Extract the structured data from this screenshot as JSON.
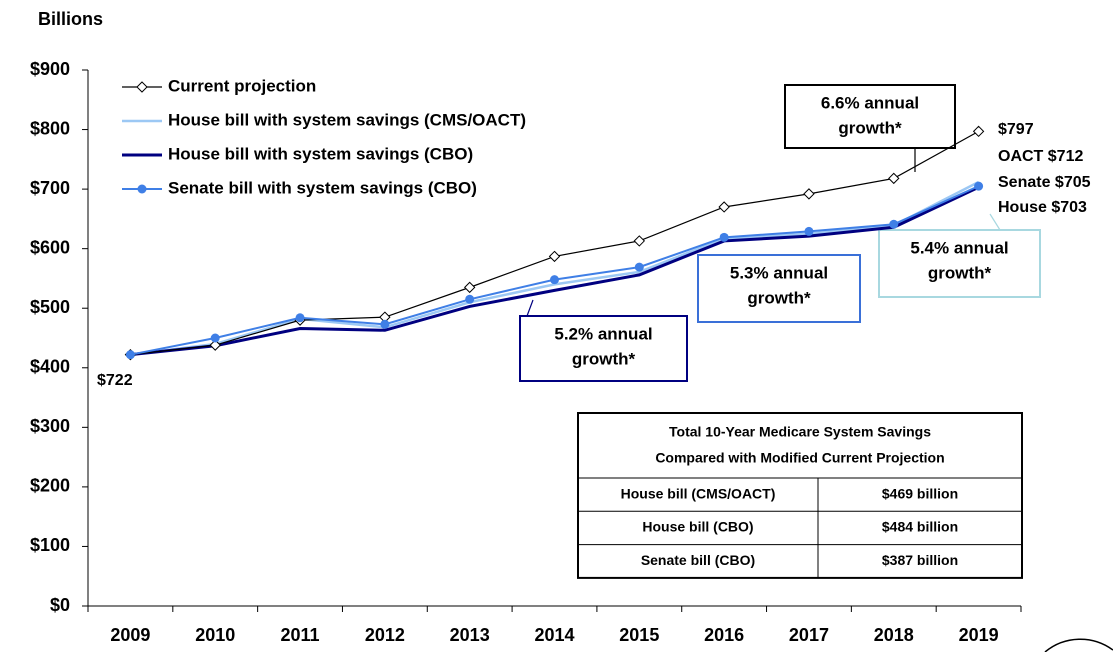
{
  "chart_data": {
    "type": "line",
    "y_label": "Billions",
    "categories": [
      "2009",
      "2010",
      "2011",
      "2012",
      "2013",
      "2014",
      "2015",
      "2016",
      "2017",
      "2018",
      "2019"
    ],
    "ylim": [
      0,
      900
    ],
    "yticks": [
      {
        "value": 0,
        "label": "$0"
      },
      {
        "value": 100,
        "label": "$100"
      },
      {
        "value": 200,
        "label": "$200"
      },
      {
        "value": 300,
        "label": "$300"
      },
      {
        "value": 400,
        "label": "$400"
      },
      {
        "value": 500,
        "label": "$500"
      },
      {
        "value": 600,
        "label": "$600"
      },
      {
        "value": 700,
        "label": "$700"
      },
      {
        "value": 800,
        "label": "$800"
      },
      {
        "value": 900,
        "label": "$900"
      }
    ],
    "legend": "upper left",
    "series": [
      {
        "name": "Current projection",
        "color": "#000000",
        "marker": "diamond",
        "width": 1.2,
        "values": [
          422,
          438,
          480,
          485,
          535,
          587,
          613,
          670,
          692,
          718,
          797
        ]
      },
      {
        "name": "House bill with system savings (CMS/OACT)",
        "color": "#9cc8f4",
        "marker": "none",
        "width": 2.5,
        "values": [
          422,
          440,
          482,
          468,
          510,
          540,
          561,
          617,
          625,
          639,
          712
        ]
      },
      {
        "name": "House bill with system savings (CBO)",
        "color": "#000080",
        "marker": "none",
        "width": 3,
        "values": [
          422,
          437,
          466,
          463,
          503,
          530,
          556,
          613,
          621,
          636,
          703
        ]
      },
      {
        "name": "Senate bill with system savings (CBO)",
        "color": "#3f7fe6",
        "marker": "circle",
        "width": 2,
        "values": [
          422,
          450,
          484,
          473,
          515,
          548,
          569,
          619,
          629,
          641,
          705
        ]
      }
    ],
    "annotations": [
      "$722",
      "$797",
      "OACT $712",
      "Senate $705",
      "House $703"
    ],
    "growth_boxes": [
      {
        "lines": [
          "6.6% annual",
          "growth*"
        ],
        "color": "#000000"
      },
      {
        "lines": [
          "5.2% annual",
          "growth*"
        ],
        "color": "#000080"
      },
      {
        "lines": [
          "5.3% annual",
          "growth*"
        ],
        "color": "#3a70d8"
      },
      {
        "lines": [
          "5.4% annual",
          "growth*"
        ],
        "color": "#a8d8e0"
      }
    ],
    "table": {
      "title": [
        "Total 10-Year Medicare System Savings",
        "Compared with Modified Current Projection"
      ],
      "rows": [
        [
          "House bill (CMS/OACT)",
          "$469 billion"
        ],
        [
          "House bill (CBO)",
          "$484 billion"
        ],
        [
          "Senate bill (CBO)",
          "$387 billion"
        ]
      ]
    }
  }
}
